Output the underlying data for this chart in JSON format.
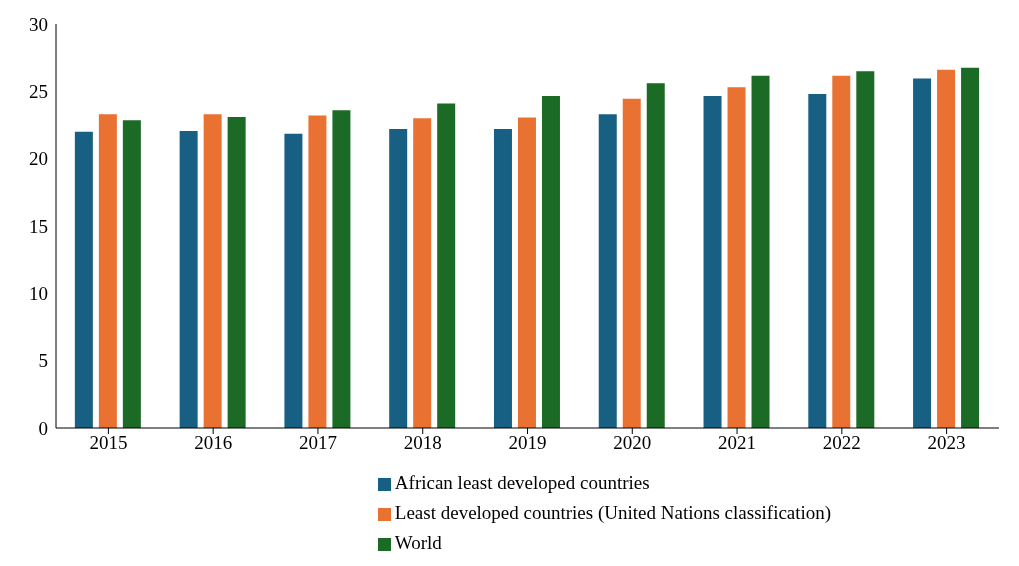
{
  "chart_data": {
    "type": "bar",
    "categories": [
      "2015",
      "2016",
      "2017",
      "2018",
      "2019",
      "2020",
      "2021",
      "2022",
      "2023"
    ],
    "series": [
      {
        "name": "African least developed countries",
        "color": "#175f83",
        "values": [
          22.0,
          22.05,
          21.85,
          22.2,
          22.2,
          23.3,
          24.65,
          24.8,
          25.95
        ]
      },
      {
        "name": "Least developed countries (United Nations classification)",
        "color": "#e97132",
        "values": [
          23.3,
          23.3,
          23.2,
          23.0,
          23.05,
          24.45,
          25.3,
          26.15,
          26.6
        ]
      },
      {
        "name": "World",
        "color": "#1b6a25",
        "values": [
          22.85,
          23.1,
          23.6,
          24.1,
          24.65,
          25.6,
          26.15,
          26.5,
          26.75
        ]
      }
    ],
    "ylim": [
      0,
      30
    ],
    "yticks": [
      0,
      5,
      10,
      15,
      20,
      25,
      30
    ],
    "grid": false,
    "legend": "bottom"
  }
}
